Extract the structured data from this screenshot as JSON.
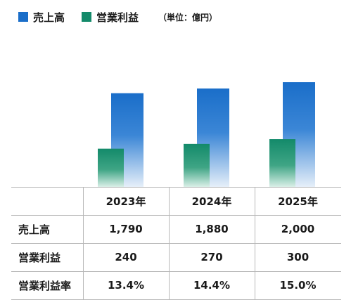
{
  "legend": {
    "sales_label": "売上高",
    "profit_label": "営業利益",
    "unit": "（単位：億円）"
  },
  "colors": {
    "sales": "#1a6ec9",
    "profit": "#138a6a"
  },
  "chart_data": {
    "type": "bar",
    "categories": [
      "2023年",
      "2024年",
      "2025年"
    ],
    "series": [
      {
        "name": "売上高",
        "values": [
          1790,
          1880,
          2000
        ]
      },
      {
        "name": "営業利益",
        "values": [
          240,
          270,
          300
        ]
      }
    ],
    "table": {
      "header": [
        "2023年",
        "2024年",
        "2025年"
      ],
      "rows": [
        {
          "label": "売上高",
          "values": [
            "1,790",
            "1,880",
            "2,000"
          ]
        },
        {
          "label": "営業利益",
          "values": [
            "240",
            "270",
            "300"
          ]
        },
        {
          "label": "営業利益率",
          "values": [
            "13.4%",
            "14.4%",
            "15.0%"
          ]
        }
      ]
    }
  }
}
